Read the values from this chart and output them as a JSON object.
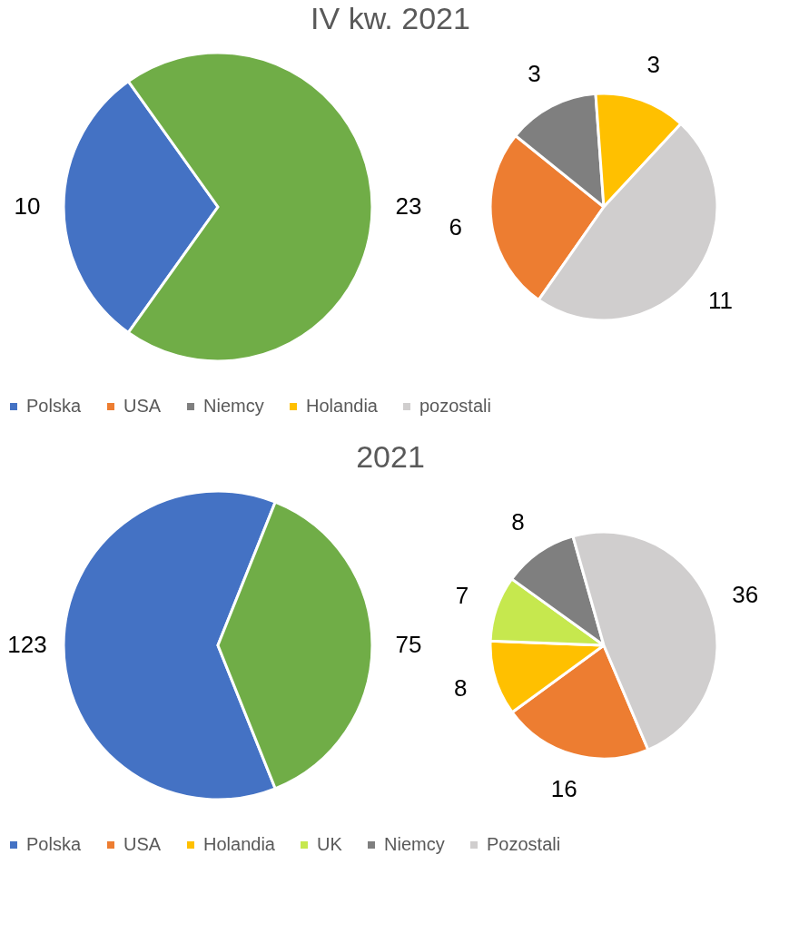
{
  "chart_data": [
    {
      "type": "pie",
      "title": "IV kw. 2021",
      "categories": [
        "Polska",
        null
      ],
      "values": [
        10,
        23
      ],
      "colors": [
        "#4472c4",
        "#70ad47"
      ],
      "data_labels": true,
      "legend": "bottom"
    },
    {
      "type": "pie",
      "categories": [
        "USA",
        "Niemcy",
        "Holandia",
        "pozostali"
      ],
      "values": [
        6,
        3,
        3,
        11
      ],
      "colors": [
        "#ed7d31",
        "#7f7f7f",
        "#ffc000",
        "#d0cece"
      ],
      "data_labels": true,
      "legend": "bottom"
    },
    {
      "type": "pie",
      "title": "2021",
      "categories": [
        "Polska",
        null
      ],
      "values": [
        123,
        75
      ],
      "colors": [
        "#4472c4",
        "#70ad47"
      ],
      "data_labels": true,
      "legend": "bottom"
    },
    {
      "type": "pie",
      "categories": [
        "USA",
        "Holandia",
        "UK",
        "Niemcy",
        "Pozostali"
      ],
      "values": [
        16,
        8,
        7,
        8,
        36
      ],
      "colors": [
        "#ed7d31",
        "#ffc000",
        "#c6e84e",
        "#7f7f7f",
        "#d0cece"
      ],
      "data_labels": true,
      "legend": "bottom"
    }
  ]
}
